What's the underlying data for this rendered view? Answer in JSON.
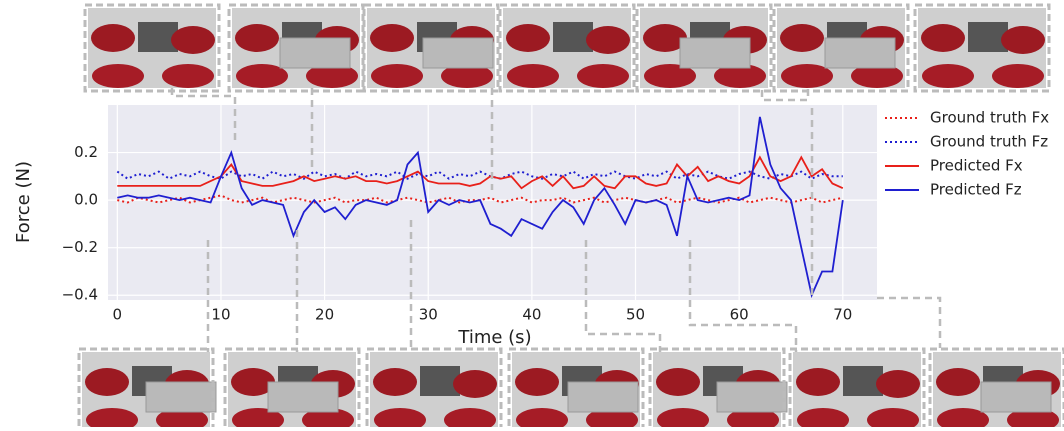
{
  "chart_data": {
    "type": "line",
    "xlabel": "Time (s)",
    "ylabel": "Force (N)",
    "x": [
      0,
      1,
      2,
      3,
      4,
      5,
      6,
      7,
      8,
      9,
      10,
      11,
      12,
      13,
      14,
      15,
      16,
      17,
      18,
      19,
      20,
      21,
      22,
      23,
      24,
      25,
      26,
      27,
      28,
      29,
      30,
      31,
      32,
      33,
      34,
      35,
      36,
      37,
      38,
      39,
      40,
      41,
      42,
      43,
      44,
      45,
      46,
      47,
      48,
      49,
      50,
      51,
      52,
      53,
      54,
      55,
      56,
      57,
      58,
      59,
      60,
      61,
      62,
      63,
      64,
      65,
      66,
      67,
      68,
      69,
      70
    ],
    "series": [
      {
        "name": "Ground truth Fx",
        "color": "#e8201a",
        "dash": true,
        "values": [
          0.0,
          -0.01,
          0.01,
          0.0,
          -0.01,
          0.0,
          0.01,
          -0.01,
          0.0,
          0.01,
          0.02,
          0.0,
          -0.01,
          0.0,
          0.01,
          -0.01,
          0.0,
          0.01,
          0.0,
          -0.01,
          0.0,
          0.01,
          -0.01,
          0.0,
          0.0,
          0.01,
          -0.01,
          0.0,
          0.01,
          0.0,
          -0.01,
          0.0,
          0.01,
          -0.01,
          0.0,
          0.0,
          0.01,
          -0.01,
          0.0,
          0.01,
          -0.01,
          0.0,
          0.0,
          0.01,
          -0.01,
          0.0,
          0.01,
          -0.01,
          0.0,
          0.01,
          0.0,
          -0.01,
          0.0,
          0.01,
          -0.01,
          0.0,
          0.01,
          0.0,
          -0.01,
          0.0,
          0.01,
          -0.01,
          0.0,
          0.01,
          0.0,
          -0.01,
          0.0,
          0.01,
          -0.01,
          0.0,
          0.01
        ]
      },
      {
        "name": "Ground truth Fz",
        "color": "#1f1fd0",
        "dash": true,
        "values": [
          0.12,
          0.09,
          0.11,
          0.1,
          0.12,
          0.09,
          0.11,
          0.1,
          0.12,
          0.1,
          0.09,
          0.12,
          0.1,
          0.11,
          0.09,
          0.12,
          0.1,
          0.11,
          0.09,
          0.12,
          0.1,
          0.11,
          0.09,
          0.12,
          0.1,
          0.11,
          0.1,
          0.12,
          0.09,
          0.11,
          0.1,
          0.12,
          0.09,
          0.11,
          0.1,
          0.12,
          0.1,
          0.09,
          0.11,
          0.12,
          0.1,
          0.09,
          0.11,
          0.1,
          0.12,
          0.09,
          0.11,
          0.1,
          0.12,
          0.1,
          0.09,
          0.11,
          0.1,
          0.12,
          0.09,
          0.11,
          0.1,
          0.12,
          0.1,
          0.09,
          0.11,
          0.12,
          0.1,
          0.09,
          0.11,
          0.1,
          0.12,
          0.09,
          0.11,
          0.1,
          0.1
        ]
      },
      {
        "name": "Predicted Fx",
        "color": "#e8201a",
        "dash": false,
        "values": [
          0.06,
          0.06,
          0.06,
          0.06,
          0.06,
          0.06,
          0.06,
          0.06,
          0.06,
          0.08,
          0.1,
          0.15,
          0.08,
          0.07,
          0.06,
          0.06,
          0.07,
          0.08,
          0.1,
          0.08,
          0.09,
          0.1,
          0.09,
          0.1,
          0.08,
          0.08,
          0.07,
          0.08,
          0.1,
          0.12,
          0.08,
          0.07,
          0.07,
          0.07,
          0.06,
          0.07,
          0.1,
          0.09,
          0.1,
          0.05,
          0.08,
          0.1,
          0.06,
          0.1,
          0.05,
          0.06,
          0.1,
          0.06,
          0.05,
          0.1,
          0.1,
          0.07,
          0.06,
          0.07,
          0.15,
          0.1,
          0.14,
          0.08,
          0.1,
          0.08,
          0.07,
          0.1,
          0.18,
          0.1,
          0.08,
          0.1,
          0.18,
          0.1,
          0.13,
          0.07,
          0.05
        ]
      },
      {
        "name": "Predicted Fz",
        "color": "#1f1fd0",
        "dash": false,
        "values": [
          0.01,
          0.02,
          0.01,
          0.01,
          0.02,
          0.01,
          0.0,
          0.01,
          0.0,
          -0.01,
          0.1,
          0.2,
          0.05,
          -0.02,
          0.0,
          -0.01,
          -0.02,
          -0.15,
          -0.05,
          0.0,
          -0.05,
          -0.03,
          -0.08,
          -0.02,
          0.0,
          -0.01,
          -0.02,
          0.0,
          0.15,
          0.2,
          -0.05,
          0.0,
          -0.02,
          0.0,
          -0.01,
          0.0,
          -0.1,
          -0.12,
          -0.15,
          -0.08,
          -0.1,
          -0.12,
          -0.05,
          0.0,
          -0.03,
          -0.1,
          0.0,
          0.05,
          -0.02,
          -0.1,
          0.0,
          -0.01,
          0.0,
          -0.02,
          -0.15,
          0.1,
          0.0,
          -0.01,
          0.0,
          0.01,
          0.0,
          0.02,
          0.35,
          0.15,
          0.05,
          0.0,
          -0.2,
          -0.4,
          -0.3,
          -0.3,
          0.0
        ]
      }
    ],
    "xlim": [
      -0.9,
      73.3
    ],
    "xticks": [
      0,
      10,
      20,
      30,
      40,
      50,
      60,
      70
    ],
    "ylim": [
      -0.42,
      0.4
    ],
    "yticks": [
      {
        "value": -0.4,
        "label": "−0.4"
      },
      {
        "value": -0.2,
        "label": "−0.2"
      },
      {
        "value": 0,
        "label": "0.0"
      },
      0.2
    ],
    "grid": true,
    "legend": "right"
  }
}
